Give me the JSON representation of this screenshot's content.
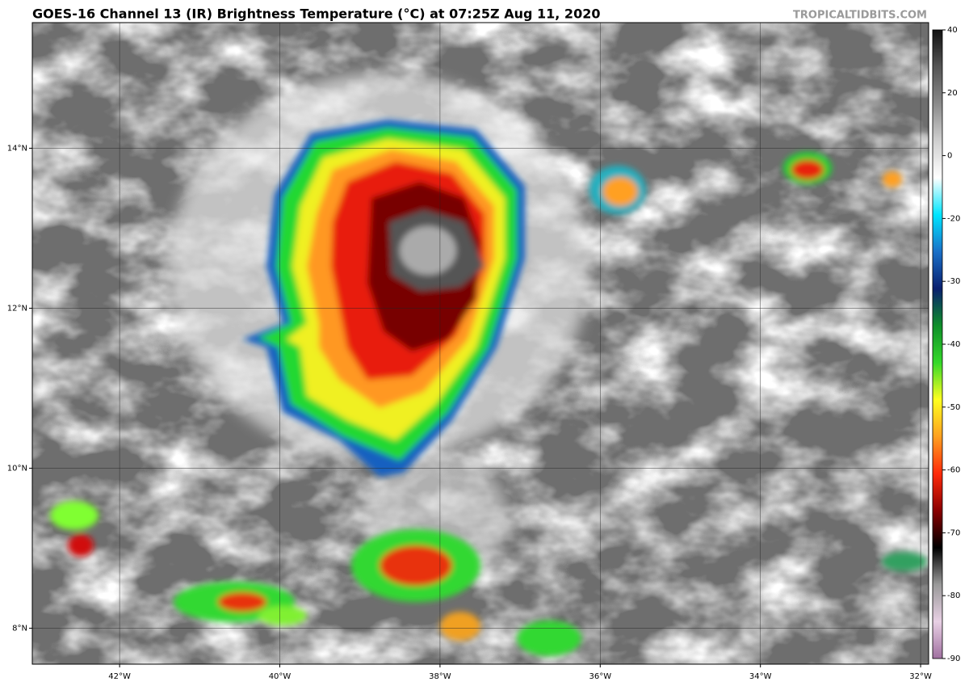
{
  "header": {
    "title": "GOES-16 Channel 13 (IR) Brightness Temperature (°C) at 07:25Z Aug 11, 2020",
    "source": "TROPICALTIDBITS.COM"
  },
  "map": {
    "xlim": [
      -43.09,
      -31.9
    ],
    "ylim": [
      7.55,
      15.57
    ],
    "xticks": [
      {
        "value": -42,
        "label": "42°W"
      },
      {
        "value": -40,
        "label": "40°W"
      },
      {
        "value": -38,
        "label": "38°W"
      },
      {
        "value": -36,
        "label": "36°W"
      },
      {
        "value": -34,
        "label": "34°W"
      },
      {
        "value": -32,
        "label": "32°W"
      }
    ],
    "yticks": [
      {
        "value": 8,
        "label": "8°N"
      },
      {
        "value": 10,
        "label": "10°N"
      },
      {
        "value": 12,
        "label": "12°N"
      },
      {
        "value": 14,
        "label": "14°N"
      }
    ]
  },
  "colorbar": {
    "ticks": [
      40,
      20,
      0,
      -20,
      -30,
      -40,
      -50,
      -60,
      -70,
      -80,
      -90
    ],
    "colors": [
      "#111111",
      "#555555",
      "#8a8a8a",
      "#cfcfcf",
      "#ffffff",
      "#00e5ff",
      "#1a70c8",
      "#0a1f6e",
      "#0f8f2a",
      "#35d92a",
      "#ffff20",
      "#ffa020",
      "#ff2a0a",
      "#8a0000",
      "#000000",
      "#999999",
      "#e8d0e4",
      "#a070a0"
    ]
  }
}
